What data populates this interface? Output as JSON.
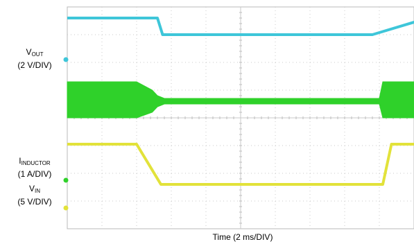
{
  "labels": {
    "vout_main": "V",
    "vout_sub": "OUT",
    "vout_div": "(2 V/DIV)",
    "iind_main": "I",
    "iind_sub": "INDUCTOR",
    "iind_div": "(1 A/DIV)",
    "vin_main": "V",
    "vin_sub": "IN",
    "vin_div": "(5 V/DIV)",
    "time_axis": "Time (2 ms/DIV)"
  },
  "colors": {
    "vout": "#3ec6d9",
    "inductor": "#2fd12a",
    "vin": "#e2e23a",
    "grid": "#c8c8c8",
    "frame": "#b9b9b9"
  },
  "chart_data": {
    "type": "line",
    "xlabel": "Time (2 ms/DIV)",
    "x_unit": "ms",
    "xlim": [
      0,
      20
    ],
    "grid": true,
    "divisions": {
      "x": 10,
      "y": 8
    },
    "series": [
      {
        "name": "VOUT",
        "scale": "2 V/DIV",
        "points_div": [
          [
            0,
            7.6
          ],
          [
            2.6,
            7.6
          ],
          [
            2.75,
            7.0
          ],
          [
            8.8,
            7.0
          ],
          [
            9.2,
            7.15
          ],
          [
            10.4,
            7.6
          ],
          [
            12.6,
            7.8
          ],
          [
            20,
            7.8
          ]
        ]
      },
      {
        "name": "IINDUCTOR",
        "scale": "1 A/DIV",
        "envelope_div": [
          [
            0,
            5.3,
            4.0
          ],
          [
            2.0,
            5.3,
            4.0
          ],
          [
            2.45,
            5.0,
            4.2
          ],
          [
            2.6,
            4.8,
            4.4
          ],
          [
            2.8,
            4.7,
            4.5
          ],
          [
            9.0,
            4.7,
            4.5
          ],
          [
            9.1,
            5.3,
            4.0
          ],
          [
            20,
            5.3,
            4.0
          ]
        ]
      },
      {
        "name": "VIN",
        "scale": "5 V/DIV",
        "points_div": [
          [
            0,
            3.05
          ],
          [
            2.0,
            3.05
          ],
          [
            2.7,
            1.6
          ],
          [
            9.1,
            1.6
          ],
          [
            9.35,
            3.05
          ],
          [
            20,
            3.05
          ]
        ]
      }
    ]
  }
}
